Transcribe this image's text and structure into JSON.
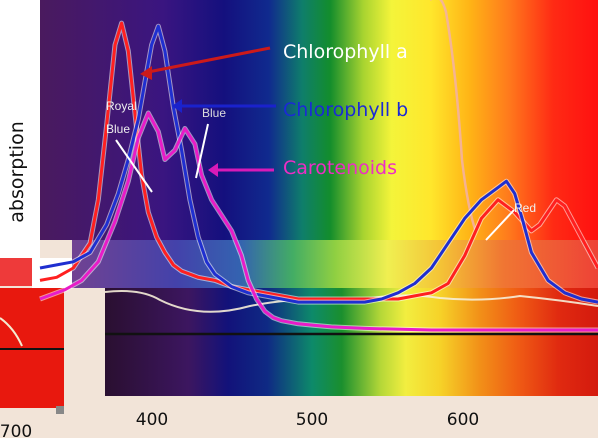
{
  "chart_data": {
    "type": "line",
    "ylabel": "absorption",
    "xlabel": "",
    "x_ticks": [
      {
        "value": 400,
        "label": "400"
      },
      {
        "value": 500,
        "label": "500"
      },
      {
        "value": 600,
        "label": "600"
      }
    ],
    "inset_tick_label": "700",
    "xlim": [
      365,
      700
    ],
    "ylim": [
      0,
      1
    ],
    "series": [
      {
        "name": "Chlorophyll a",
        "color": "#ff2020",
        "x": [
          365,
          375,
          385,
          395,
          400,
          405,
          410,
          414,
          418,
          422,
          426,
          430,
          435,
          440,
          445,
          450,
          455,
          460,
          470,
          480,
          490,
          500,
          510,
          520,
          530,
          540,
          550,
          560,
          570,
          580,
          590,
          600,
          610,
          620,
          630,
          640,
          650,
          660,
          665,
          670,
          675,
          680,
          690,
          700
        ],
        "y": [
          0.16,
          0.17,
          0.2,
          0.28,
          0.42,
          0.66,
          0.92,
          0.99,
          0.9,
          0.7,
          0.5,
          0.38,
          0.3,
          0.25,
          0.21,
          0.19,
          0.18,
          0.17,
          0.16,
          0.14,
          0.13,
          0.12,
          0.11,
          0.1,
          0.1,
          0.1,
          0.1,
          0.1,
          0.1,
          0.1,
          0.11,
          0.12,
          0.15,
          0.24,
          0.36,
          0.42,
          0.38,
          0.32,
          0.34,
          0.38,
          0.42,
          0.4,
          0.3,
          0.2
        ]
      },
      {
        "name": "Chlorophyll b",
        "color": "#1f2fd0",
        "x": [
          365,
          375,
          385,
          395,
          405,
          412,
          418,
          424,
          428,
          432,
          436,
          440,
          445,
          450,
          455,
          460,
          465,
          470,
          480,
          490,
          500,
          510,
          520,
          530,
          540,
          550,
          560,
          570,
          580,
          590,
          600,
          610,
          620,
          630,
          640,
          645,
          650,
          655,
          660,
          670,
          680,
          690,
          700
        ],
        "y": [
          0.2,
          0.21,
          0.22,
          0.25,
          0.34,
          0.44,
          0.55,
          0.68,
          0.8,
          0.92,
          0.98,
          0.9,
          0.72,
          0.58,
          0.42,
          0.3,
          0.22,
          0.18,
          0.14,
          0.12,
          0.11,
          0.1,
          0.09,
          0.09,
          0.09,
          0.09,
          0.09,
          0.1,
          0.12,
          0.15,
          0.2,
          0.28,
          0.36,
          0.42,
          0.46,
          0.48,
          0.44,
          0.35,
          0.25,
          0.16,
          0.12,
          0.1,
          0.09
        ]
      },
      {
        "name": "Carotenoids",
        "color": "#e81cc8",
        "x": [
          365,
          380,
          390,
          400,
          410,
          418,
          424,
          430,
          436,
          440,
          446,
          452,
          458,
          462,
          468,
          474,
          480,
          486,
          490,
          495,
          500,
          505,
          510,
          520,
          530,
          540,
          560,
          600,
          650,
          700
        ],
        "y": [
          0.1,
          0.13,
          0.16,
          0.22,
          0.35,
          0.48,
          0.62,
          0.7,
          0.64,
          0.55,
          0.58,
          0.65,
          0.6,
          0.5,
          0.42,
          0.37,
          0.32,
          0.24,
          0.16,
          0.1,
          0.06,
          0.04,
          0.03,
          0.02,
          0.015,
          0.01,
          0.005,
          0.0,
          0.0,
          0.0
        ]
      }
    ],
    "annotations": [
      {
        "label": "Royal Blue"
      },
      {
        "label": "Blue"
      },
      {
        "label": "Red"
      }
    ],
    "grid": false,
    "legend": "top-right"
  },
  "colors": {
    "chlorophyll_a_line": "#ff3020",
    "chlorophyll_b_line": "#1f2fd0",
    "carotenoids_line": "#e81cc8",
    "background": "#f2e4d8",
    "overlay_line": "#f8f0e0"
  }
}
